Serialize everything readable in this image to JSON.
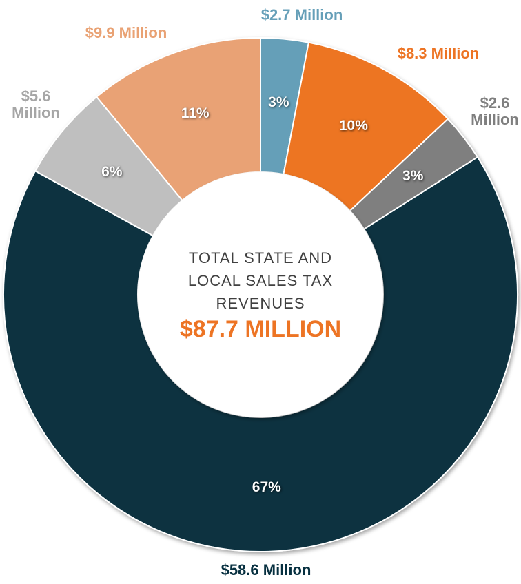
{
  "chart_data": {
    "type": "donut",
    "center_label": "TOTAL STATE AND LOCAL SALES TAX REVENUES",
    "center_value": "$87.7 MILLION",
    "values": [
      3,
      10,
      3,
      67,
      6,
      11
    ],
    "value_labels": [
      "3%",
      "10%",
      "3%",
      "67%",
      "6%",
      "11%"
    ],
    "amount_labels": [
      "$2.7 Million",
      "$8.3 Million",
      "$2.6 Million",
      "$58.6 Million",
      "$5.6 Million",
      "$9.9 Million"
    ],
    "colors": [
      "#659fb8",
      "#ed7424",
      "#7f7f7f",
      "#073040",
      "#bfbfbf",
      "#e9a274"
    ]
  }
}
